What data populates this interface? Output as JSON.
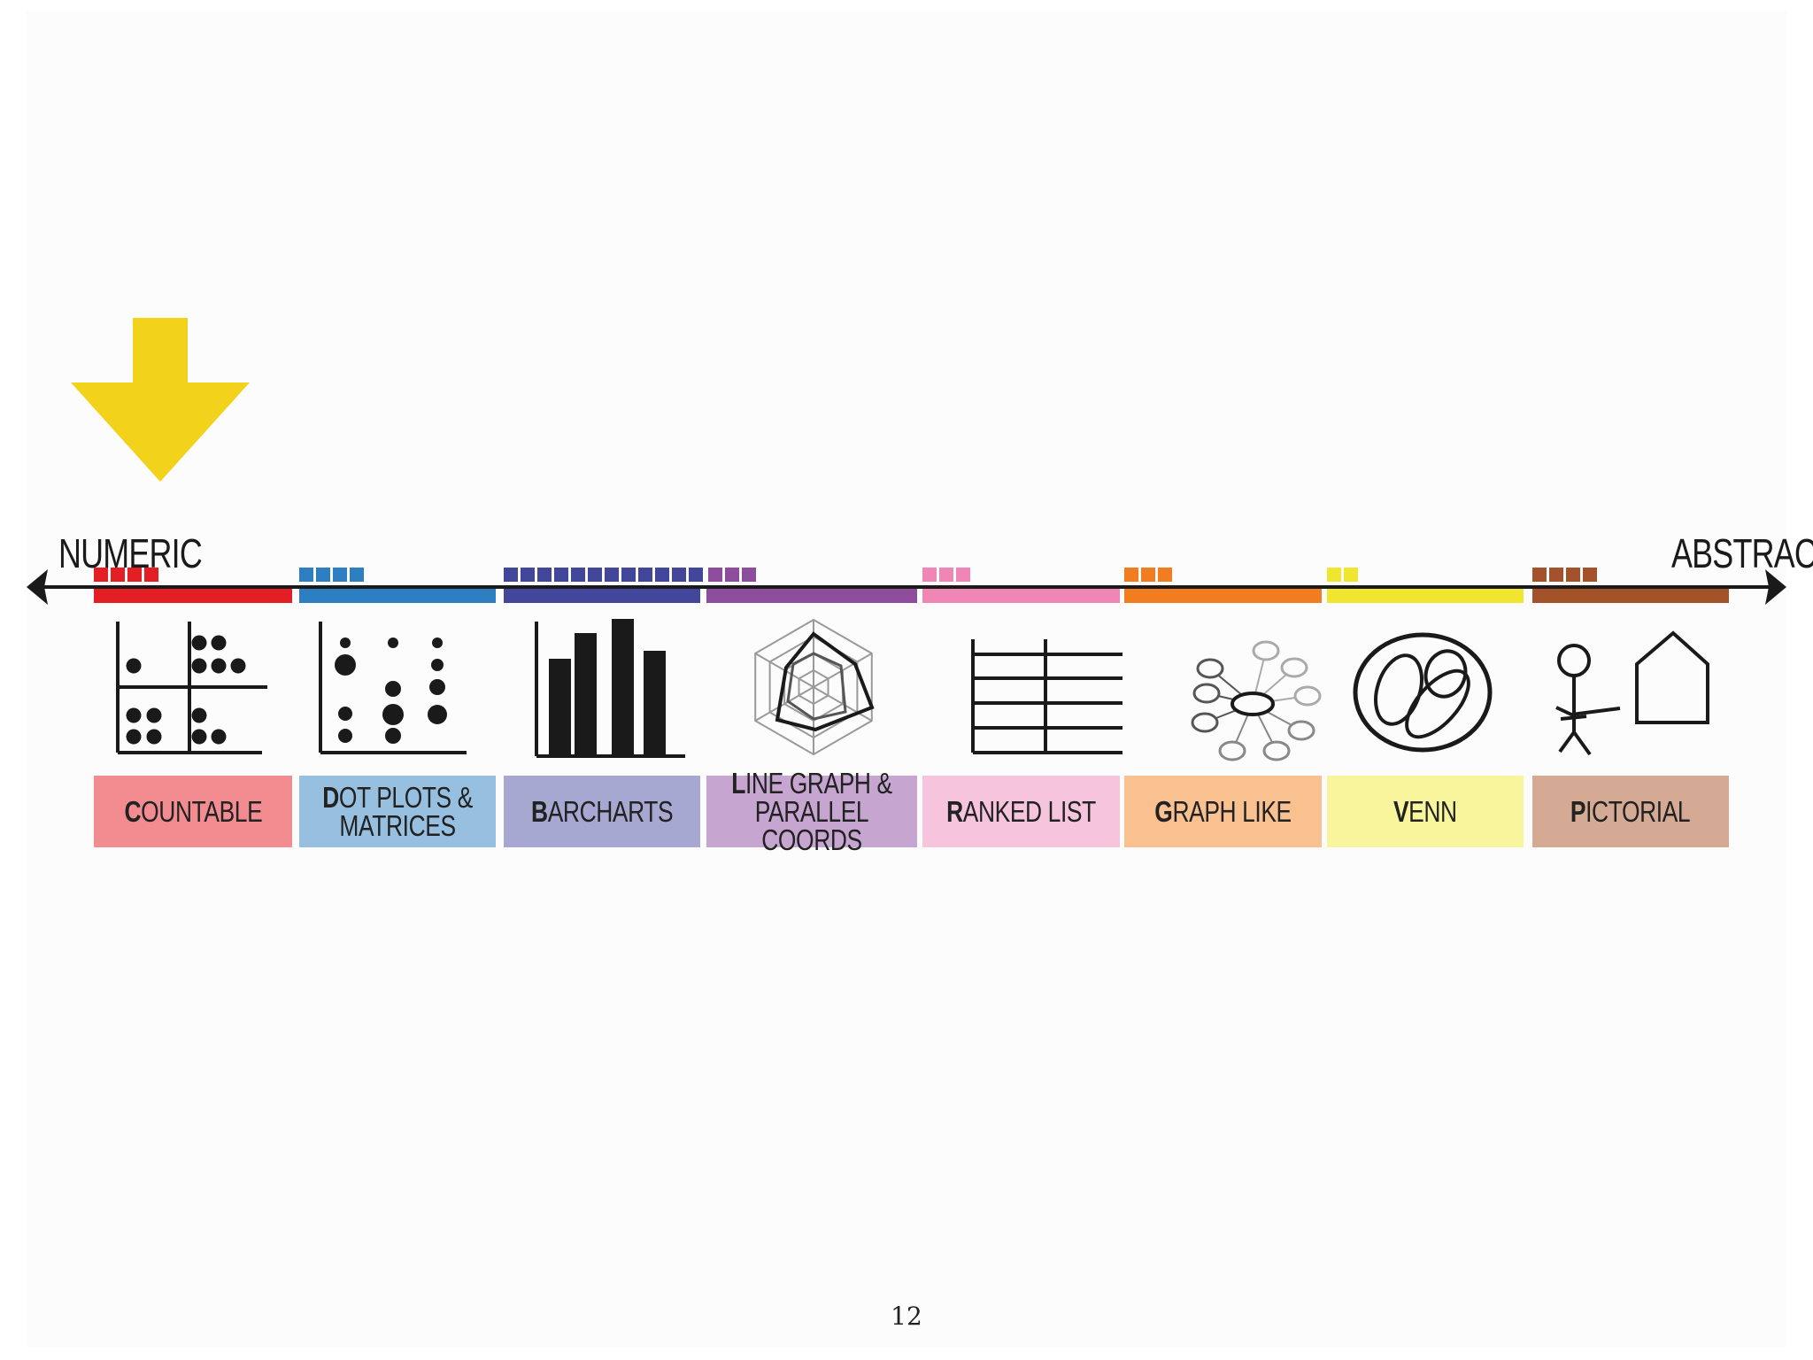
{
  "slide": {
    "left_label": "NUMERIC",
    "right_label": "ABSTRACT",
    "page_number": "12",
    "arrow_color": "#f2d21b",
    "axis_color": "#1a1a1a"
  },
  "categories": [
    {
      "id": "countable",
      "initial": "C",
      "rest": "OUNTABLE",
      "bar_color": "#e31e24",
      "box_color": "#f28c90",
      "count": 4,
      "icon": "quadrant-dot-matrix-icon"
    },
    {
      "id": "dot-plots",
      "initial": "D",
      "rest": "OT PLOTS &\nMATRICES",
      "bar_color": "#2e7fc1",
      "box_color": "#97bfe0",
      "count": 4,
      "icon": "dot-plot-icon"
    },
    {
      "id": "barcharts",
      "initial": "B",
      "rest": "ARCHARTS",
      "bar_color": "#42479c",
      "box_color": "#a7a8d1",
      "count": 12,
      "icon": "bar-chart-icon"
    },
    {
      "id": "line-graph",
      "initial": "L",
      "rest": "INE GRAPH &\nPARALLEL COORDS",
      "bar_color": "#8e4c9c",
      "box_color": "#c7a5d1",
      "count": 3,
      "icon": "radar-chart-icon"
    },
    {
      "id": "ranked-list",
      "initial": "R",
      "rest": "ANKED LIST",
      "bar_color": "#ef86b6",
      "box_color": "#f6c4dc",
      "count": 3,
      "icon": "ranked-list-icon"
    },
    {
      "id": "graph-like",
      "initial": "G",
      "rest": "RAPH LIKE",
      "bar_color": "#f27d20",
      "box_color": "#f9c090",
      "count": 3,
      "icon": "network-graph-icon"
    },
    {
      "id": "venn",
      "initial": "V",
      "rest": "ENN",
      "bar_color": "#f0e630",
      "box_color": "#f8f59d",
      "count": 2,
      "icon": "venn-diagram-icon"
    },
    {
      "id": "pictorial",
      "initial": "P",
      "rest": "ICTORIAL",
      "bar_color": "#a3522a",
      "box_color": "#d5aa94",
      "count": 4,
      "icon": "pictorial-icon"
    }
  ]
}
